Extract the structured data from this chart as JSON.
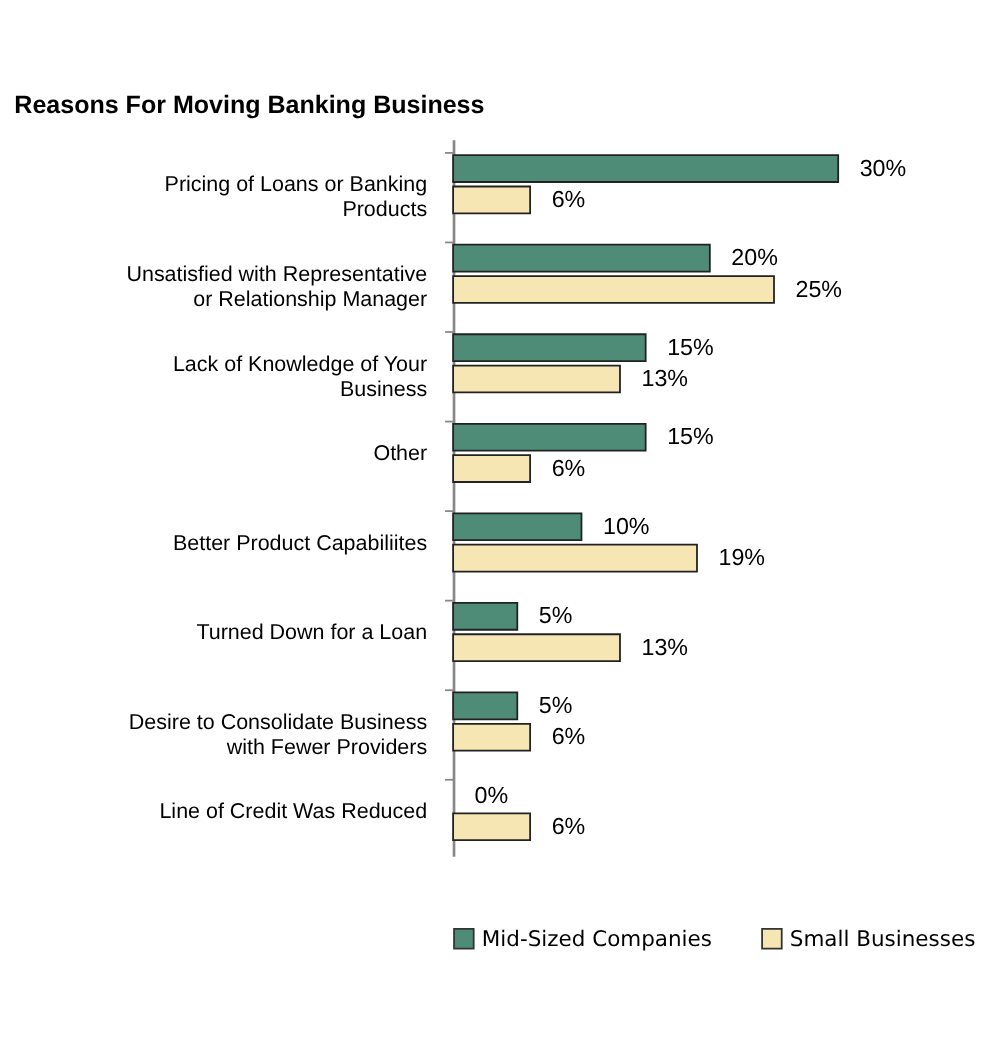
{
  "chart_data": {
    "type": "bar",
    "orientation": "horizontal",
    "title": "Reasons For Moving Banking Business",
    "categories": [
      "Pricing of Loans or Banking Products",
      "Unsatisfied with Representative or Relationship Manager",
      "Lack of Knowledge of Your Business",
      "Other",
      "Better Product Capabiliites",
      "Turned Down for a Loan",
      "Desire to Consolidate Business with Fewer Providers",
      "Line of Credit Was Reduced"
    ],
    "series": [
      {
        "name": "Mid-Sized Companies",
        "color": "#4e8c78",
        "values": [
          30,
          20,
          15,
          15,
          10,
          5,
          5,
          0
        ],
        "value_labels": [
          "30%",
          "20%",
          "15%",
          "15%",
          "10%",
          "5%",
          "5%",
          "0%"
        ]
      },
      {
        "name": "Small Businesses",
        "color": "#f5e6b3",
        "values": [
          6,
          25,
          13,
          6,
          19,
          13,
          6,
          6
        ],
        "value_labels": [
          "6%",
          "25%",
          "13%",
          "6%",
          "19%",
          "13%",
          "6%",
          "6%"
        ]
      }
    ],
    "tick_labels": "y",
    "legend": "bottom",
    "grid": false
  }
}
